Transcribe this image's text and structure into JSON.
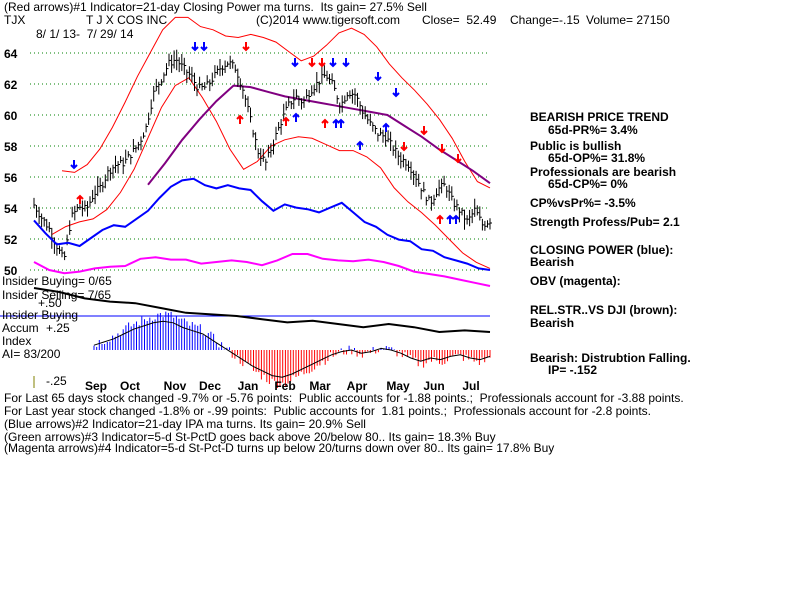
{
  "header": {
    "line1": "(Red arrows)#1 Indicator=21-day Closing Power ma turns.  Its gain= 27.5% Sell",
    "ticker": "TJX",
    "company": "T J X COS INC",
    "copyright": "(C)2014 www.tigersoft.com",
    "close": "Close=  52.49",
    "change": "Change=-.15",
    "volume": "Volume= 27150",
    "daterange": "8/ 1/ 13-  7/ 29/ 14"
  },
  "left_labels": {
    "insider_buying": "Insider Buying= 0/65",
    "insider_selling": "Insider Selling= 7/65",
    "insider_buying2": "Insider Buying",
    "accum": "Accum",
    "index": "Index",
    "ai": "AI= 83/200",
    "plus50": "+.50",
    "plus25": "+.25",
    "minus25": "-.25"
  },
  "right_panel": {
    "trend": "BEARISH PRICE TREND",
    "pr": "65d-PR%= 3.4%",
    "public": "Public is bullish",
    "op": "65d-OP%= 31.8%",
    "pros": "Professionals are bearish",
    "cp": "65d-CP%= 0%",
    "cpvspr": "CP%vsPr%= -3.5%",
    "strength": "Strength Profess/Pub= 2.1",
    "closing_power": "CLOSING POWER (blue):",
    "cp_state": "Bearish",
    "obv": "OBV (magenta):",
    "relstr": "REL.STR..VS DJI (brown):",
    "relstr_state": "Bearish",
    "distribution": "Bearish: Distrubtion Falling.",
    "ip": "IP= -.152"
  },
  "footer": {
    "line1": "For Last 65 days stock changed -9.7% or -5.76 points:  Public accounts for -1.88 points.;  Professionals account for -3.88 points.",
    "line2": "For Last year stock changed -1.8% or -.99 points:  Public accounts for  1.81 points.;  Professionals account for -2.8 points.",
    "line3": "(Blue arrows)#2 Indicator=21-day IPA ma turns. Its gain= 20.9% Sell",
    "line4": "(Green arrows)#3 Indicator=5-d St-PctD goes back above 20/below 80.. Its gain= 18.3% Buy",
    "line5": "(Magenta arrows)#4 Indicator=5-d St-Pct-D turns up below 20/turns down over 80.. Its gain= 17.8% Buy"
  },
  "colors": {
    "price": "#000000",
    "bands": "#ff0000",
    "ma": "#800080",
    "closing_power": "#0000ff",
    "obv": "#ff00ff",
    "relstr": "#000000",
    "accum_pos": "#0000ff",
    "accum_neg": "#ff0000",
    "grid": "#008000",
    "divider": "#0000ff"
  },
  "chart_data": {
    "type": "line",
    "title": "T J X COS INC",
    "x_ticks": [
      "Sep",
      "Oct",
      "Nov",
      "Dec",
      "Jan",
      "Feb",
      "Mar",
      "Apr",
      "May",
      "Jun",
      "Jul"
    ],
    "y_ticks": [
      64,
      62,
      60,
      58,
      56,
      54,
      52,
      50
    ],
    "ylim": [
      48.5,
      65.5
    ],
    "price_close": [
      54.2,
      53.4,
      52.7,
      51.6,
      50.6,
      53.4,
      54.1,
      53.9,
      54.9,
      55.4,
      56.4,
      56.8,
      56.9,
      57.5,
      58.1,
      59.2,
      61.4,
      62.3,
      63.3,
      63.6,
      63.0,
      62.5,
      61.7,
      61.8,
      62.4,
      63.1,
      63.4,
      63.0,
      61.6,
      59.6,
      57.6,
      56.9,
      58.2,
      59.5,
      60.6,
      61.2,
      60.8,
      61.6,
      62.1,
      62.6,
      61.9,
      60.6,
      61.5,
      61.3,
      60.2,
      59.4,
      58.8,
      58.6,
      57.9,
      57.2,
      56.9,
      56.1,
      55.1,
      54.3,
      55.2,
      55.5,
      54.4,
      53.8,
      53.1,
      53.9,
      52.9,
      53.2
    ],
    "upper_band": [
      56.4,
      56.3,
      56.8,
      57.8,
      59.2,
      60.8,
      62.5,
      64.0,
      65.5,
      66.3,
      66.3,
      65.7,
      65.5,
      65.1,
      65.0,
      65.2,
      65.0,
      64.7,
      64.1,
      63.5,
      63.8,
      64.5,
      65.3,
      65.6,
      65.2,
      64.4,
      63.3,
      62.4,
      61.6,
      60.7,
      59.7,
      58.5,
      57.0,
      55.7,
      55.3
    ],
    "lower_band": [
      52.3,
      52.8,
      53.1,
      53.3,
      53.9,
      55.0,
      56.5,
      58.5,
      60.5,
      61.9,
      62.4,
      61.1,
      59.6,
      57.8,
      56.5,
      57.0,
      58.0,
      58.4,
      58.6,
      58.5,
      58.1,
      57.7,
      57.7,
      57.3,
      56.6,
      55.3,
      54.4,
      53.7,
      52.9,
      52.0,
      51.1,
      50.5,
      50.1
    ],
    "ma": [
      55.5,
      56.9,
      58.4,
      59.7,
      60.9,
      61.9,
      61.8,
      61.5,
      61.2,
      61.0,
      60.8,
      60.6,
      60.4,
      60.2,
      60.0,
      59.3,
      58.6,
      57.8,
      57.1,
      56.4,
      55.6
    ],
    "closing_power": [
      0.62,
      0.46,
      0.32,
      0.34,
      0.3,
      0.4,
      0.5,
      0.56,
      0.54,
      0.64,
      0.74,
      0.9,
      1.04,
      1.12,
      1.14,
      1.06,
      1.02,
      1.06,
      1.02,
      1.0,
      0.86,
      0.74,
      0.82,
      0.78,
      0.76,
      0.72,
      0.78,
      0.84,
      0.72,
      0.6,
      0.54,
      0.44,
      0.38,
      0.36,
      0.26,
      0.24,
      0.16,
      0.12,
      0.08,
      0.02,
      0.0
    ],
    "obv": [
      0.3,
      0.2,
      0.16,
      0.18,
      0.22,
      0.24,
      0.25,
      0.34,
      0.36,
      0.33,
      0.33,
      0.28,
      0.3,
      0.32,
      0.3,
      0.26,
      0.32,
      0.4,
      0.4,
      0.34,
      0.32,
      0.31,
      0.33,
      0.3,
      0.25,
      0.18,
      0.15,
      0.12,
      0.08,
      0.04,
      0.0
    ],
    "relstr": [
      0.55,
      0.5,
      0.42,
      0.38,
      0.36,
      0.3,
      0.24,
      0.22,
      0.2,
      0.16,
      0.12,
      0.14,
      0.1,
      0.06,
      0.1,
      0.06,
      0.0,
      0.02,
      0.0
    ],
    "accum_index": [
      0.03,
      0.05,
      0.07,
      0.1,
      0.13,
      0.15,
      0.17,
      0.18,
      0.17,
      0.14,
      0.12,
      0.1,
      0.06,
      0.02,
      -0.02,
      -0.06,
      -0.1,
      -0.13,
      -0.16,
      -0.17,
      -0.15,
      -0.12,
      -0.09,
      -0.06,
      -0.03,
      -0.01,
      0.0,
      -0.02,
      -0.01,
      0.01,
      0.0,
      -0.02,
      -0.05,
      -0.07,
      -0.05,
      -0.06,
      -0.04,
      -0.03,
      -0.05,
      -0.06,
      -0.04
    ]
  }
}
